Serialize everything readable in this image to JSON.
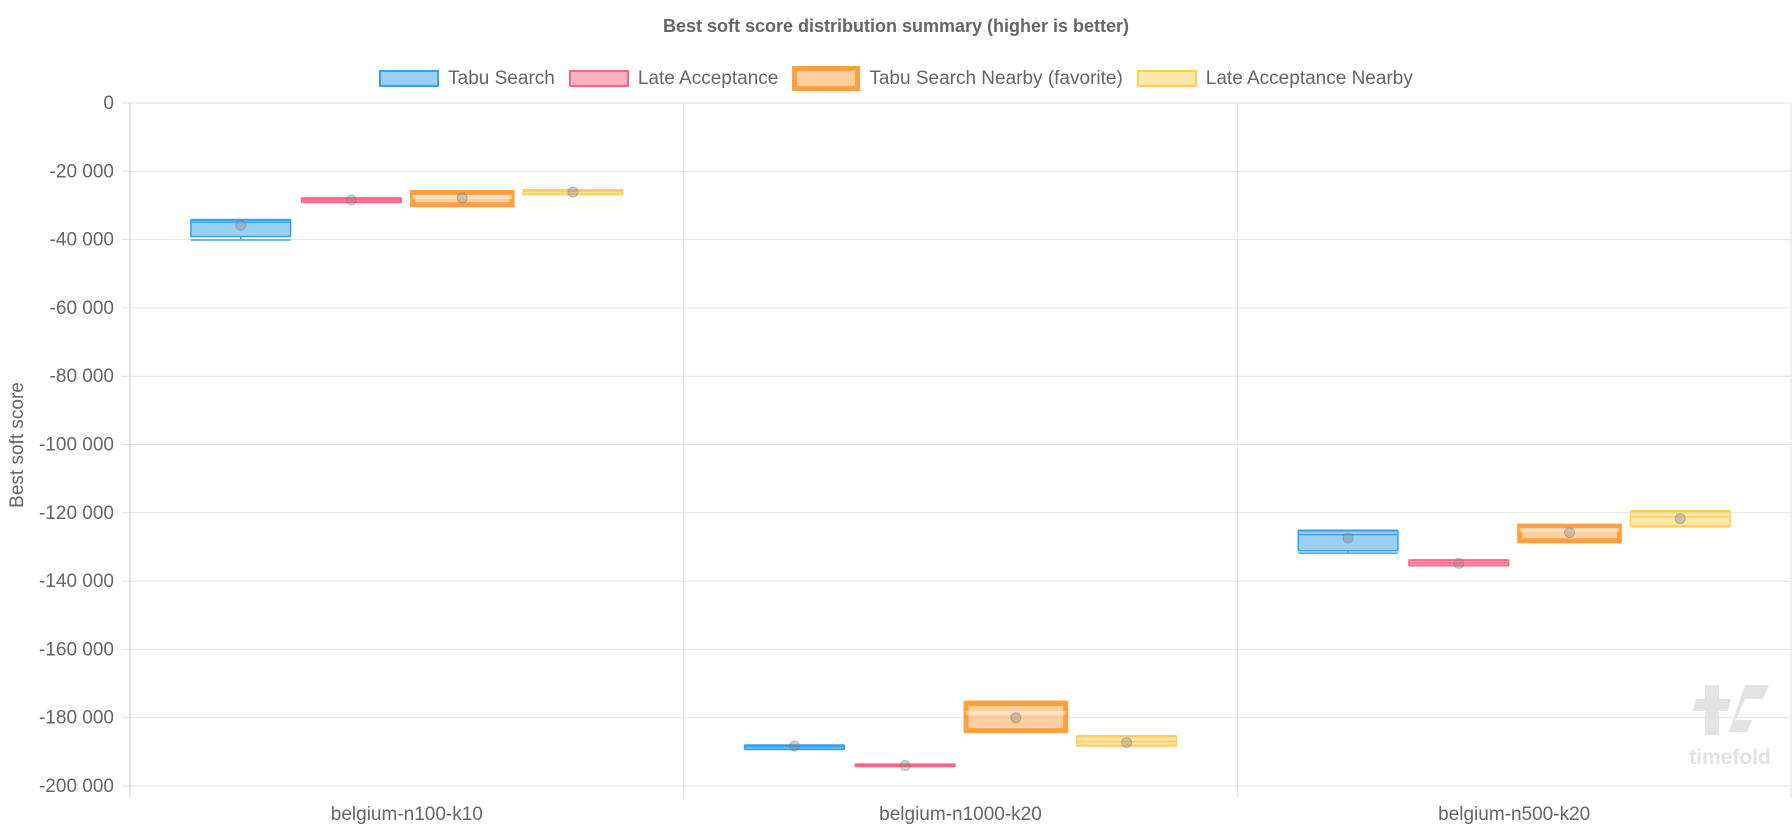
{
  "chart_data": {
    "type": "boxplot",
    "title": "Best soft score distribution summary (higher is better)",
    "xlabel": "",
    "ylabel": "Best soft score",
    "ylim": [
      -200000,
      0
    ],
    "yticks": [
      0,
      -20000,
      -40000,
      -60000,
      -80000,
      -100000,
      -120000,
      -140000,
      -160000,
      -180000,
      -200000
    ],
    "ytick_labels": [
      "0",
      "-20 000",
      "-40 000",
      "-60 000",
      "-80 000",
      "-100 000",
      "-120 000",
      "-140 000",
      "-160 000",
      "-180 000",
      "-200 000"
    ],
    "grid": true,
    "legend_placement": "top",
    "categories": [
      "belgium-n100-k10",
      "belgium-n1000-k20",
      "belgium-n500-k20"
    ],
    "series": [
      {
        "name": "Tabu Search",
        "color": "#36a2eb",
        "favorite": false,
        "values": [
          {
            "min": -40100,
            "q1": -39100,
            "median": -34900,
            "q3": -34300,
            "max": -34100,
            "mean": -35800
          },
          {
            "min": -189300,
            "q1": -189200,
            "median": -188500,
            "q3": -188100,
            "max": -188000,
            "mean": -188300
          },
          {
            "min": -131800,
            "q1": -131100,
            "median": -126400,
            "q3": -125300,
            "max": -125100,
            "mean": -127400
          }
        ]
      },
      {
        "name": "Late Acceptance",
        "color": "#ff6384",
        "favorite": false,
        "values": [
          {
            "min": -29100,
            "q1": -29000,
            "median": -28400,
            "q3": -27900,
            "max": -27800,
            "mean": -28400
          },
          {
            "min": -194300,
            "q1": -194200,
            "median": -194000,
            "q3": -193700,
            "max": -193600,
            "mean": -194000
          },
          {
            "min": -135500,
            "q1": -135400,
            "median": -134700,
            "q3": -133900,
            "max": -133800,
            "mean": -134800
          }
        ]
      },
      {
        "name": "Tabu Search Nearby (favorite)",
        "color": "#ff9f40",
        "favorite": true,
        "values": [
          {
            "min": -30100,
            "q1": -29800,
            "median": -27500,
            "q3": -26200,
            "max": -26100,
            "mean": -27800
          },
          {
            "min": -184300,
            "q1": -183800,
            "median": -178600,
            "q3": -175800,
            "max": -175200,
            "mean": -180000
          },
          {
            "min": -128400,
            "q1": -128200,
            "median": -125000,
            "q3": -123900,
            "max": -123700,
            "mean": -125800
          }
        ]
      },
      {
        "name": "Late Acceptance Nearby",
        "color": "#ffcd56",
        "favorite": false,
        "values": [
          {
            "min": -26800,
            "q1": -26700,
            "median": -25900,
            "q3": -25500,
            "max": -25400,
            "mean": -26100
          },
          {
            "min": -188300,
            "q1": -188100,
            "median": -187000,
            "q3": -185500,
            "max": -185300,
            "mean": -187300
          },
          {
            "min": -124100,
            "q1": -123900,
            "median": -121200,
            "q3": -119600,
            "max": -119400,
            "mean": -121700
          }
        ]
      }
    ]
  },
  "watermark": {
    "logo": "timefold"
  }
}
